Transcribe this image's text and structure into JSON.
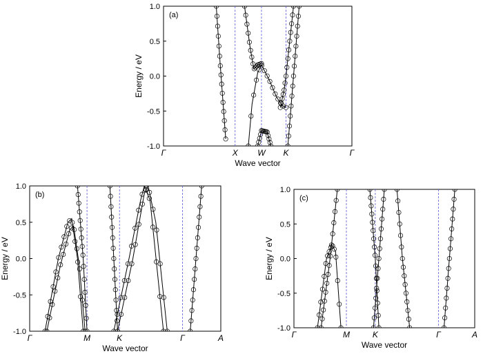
{
  "chart_data": [
    {
      "id": "a",
      "type": "line",
      "panel_label": "(a)",
      "xlabel": "Wave vector",
      "ylabel": "Energy / eV",
      "ylim": [
        -1.0,
        1.0
      ],
      "yticks": [
        "1.0",
        "0.5",
        "0.0",
        "-0.5",
        "-1.0"
      ],
      "ytick_values": [
        1.0,
        0.5,
        0.0,
        -0.5,
        -1.0
      ],
      "xlim": [
        0,
        10
      ],
      "kpoints": [
        {
          "label": "Γ",
          "x": 0
        },
        {
          "label": "X",
          "x": 3.8
        },
        {
          "label": "W",
          "x": 5.2
        },
        {
          "label": "K",
          "x": 6.5
        },
        {
          "label": "Γ",
          "x": 10
        }
      ],
      "vlines": [
        3.8,
        5.2,
        6.5
      ],
      "bands": [
        {
          "x": [
            2.8,
            3.0,
            3.3
          ],
          "y": [
            1.0,
            0.2,
            -0.9
          ]
        },
        {
          "x": [
            4.5,
            4.7,
            5.0,
            5.2,
            5.6,
            6.0,
            6.3,
            6.5
          ],
          "y": [
            -1.0,
            -0.4,
            0.05,
            0.16,
            -0.05,
            -0.3,
            -0.42,
            -0.45
          ]
        },
        {
          "x": [
            4.3,
            4.6,
            4.8,
            5.0,
            5.2
          ],
          "y": [
            1.0,
            0.4,
            0.1,
            0.16,
            0.18
          ]
        },
        {
          "x": [
            5.0,
            5.2,
            5.5,
            5.7
          ],
          "y": [
            -1.0,
            -0.78,
            -0.8,
            -1.0
          ]
        },
        {
          "x": [
            6.6,
            6.9,
            7.2
          ],
          "y": [
            -1.0,
            0.0,
            1.0
          ]
        },
        {
          "x": [
            6.2,
            6.4,
            6.5,
            6.7,
            6.9
          ],
          "y": [
            -0.45,
            -0.2,
            0.0,
            0.5,
            1.0
          ]
        }
      ]
    },
    {
      "id": "b",
      "type": "line",
      "panel_label": "(b)",
      "xlabel": "Wave vector",
      "ylabel": "Energy / eV",
      "ylim": [
        -1.0,
        1.0
      ],
      "yticks": [
        "1.0",
        "0.5",
        "0.0",
        "-0.5",
        "-1.0"
      ],
      "ytick_values": [
        1.0,
        0.5,
        0.0,
        -0.5,
        -1.0
      ],
      "xlim": [
        0,
        10
      ],
      "kpoints": [
        {
          "label": "Γ",
          "x": 0
        },
        {
          "label": "M",
          "x": 3.0
        },
        {
          "label": "K",
          "x": 4.7
        },
        {
          "label": "Γ",
          "x": 8.0
        },
        {
          "label": "A",
          "x": 10
        }
      ],
      "vlines": [
        3.0,
        4.7,
        8.0
      ],
      "bands": [
        {
          "x": [
            0.8,
            1.5,
            2.0,
            2.2,
            2.5,
            2.8
          ],
          "y": [
            -1.0,
            0.0,
            0.5,
            0.55,
            0.0,
            -1.0
          ]
        },
        {
          "x": [
            0.9,
            1.6,
            2.1,
            2.3,
            2.6,
            2.9
          ],
          "y": [
            -1.0,
            -0.1,
            0.4,
            0.45,
            -0.1,
            -1.0
          ]
        },
        {
          "x": [
            2.5,
            2.8,
            3.0
          ],
          "y": [
            1.0,
            0.0,
            -1.0
          ]
        },
        {
          "x": [
            4.2,
            4.4,
            4.6
          ],
          "y": [
            1.0,
            0.0,
            -1.0
          ]
        },
        {
          "x": [
            4.4,
            5.2,
            5.8,
            6.0,
            6.3,
            7.0
          ],
          "y": [
            -1.0,
            0.0,
            0.8,
            1.0,
            0.8,
            -1.0
          ]
        },
        {
          "x": [
            4.6,
            5.4,
            6.0,
            6.2,
            6.6,
            7.2
          ],
          "y": [
            -1.0,
            0.0,
            0.9,
            1.0,
            0.5,
            -1.0
          ]
        },
        {
          "x": [
            8.4,
            8.7,
            9.0
          ],
          "y": [
            -1.0,
            0.0,
            1.0
          ]
        }
      ]
    },
    {
      "id": "c",
      "type": "line",
      "panel_label": "(c)",
      "xlabel": "Wave vector",
      "ylabel": "Energy / eV",
      "ylim": [
        -1.0,
        1.0
      ],
      "yticks": [
        "1.0",
        "0.5",
        "0.0",
        "-0.5",
        "-1.0"
      ],
      "ytick_values": [
        1.0,
        0.5,
        0.0,
        -0.5,
        -1.0
      ],
      "xlim": [
        0,
        10
      ],
      "kpoints": [
        {
          "label": "Γ",
          "x": 0
        },
        {
          "label": "M",
          "x": 2.9
        },
        {
          "label": "K",
          "x": 4.5
        },
        {
          "label": "Γ",
          "x": 8.0
        },
        {
          "label": "A",
          "x": 10
        }
      ],
      "vlines": [
        2.9,
        4.5,
        8.0
      ],
      "bands": [
        {
          "x": [
            1.3,
            1.8,
            2.1,
            2.3,
            2.6
          ],
          "y": [
            -1.0,
            0.0,
            0.2,
            0.1,
            -1.0
          ]
        },
        {
          "x": [
            1.5,
            2.0,
            2.4
          ],
          "y": [
            -1.0,
            0.0,
            1.0
          ]
        },
        {
          "x": [
            4.2,
            4.5,
            4.7
          ],
          "y": [
            1.0,
            0.0,
            -1.0
          ]
        },
        {
          "x": [
            4.4,
            4.7,
            5.0
          ],
          "y": [
            -1.0,
            0.0,
            1.0
          ]
        },
        {
          "x": [
            5.7,
            6.0,
            6.4
          ],
          "y": [
            1.0,
            0.0,
            -1.0
          ]
        },
        {
          "x": [
            8.3,
            8.6,
            8.9
          ],
          "y": [
            -1.0,
            0.0,
            1.0
          ]
        }
      ]
    }
  ]
}
